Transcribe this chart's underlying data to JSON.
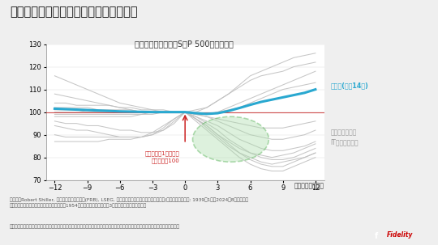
{
  "title_main": "米利下げ後の株価のリターンの特徴は？",
  "title_sub": "米利下げ開始前後のS＆P 500のリターン",
  "xlabel": "（経過した月数）",
  "bg_color": "#efefef",
  "plot_bg": "#ffffff",
  "x_ticks": [
    -12,
    -9,
    -6,
    -3,
    0,
    3,
    6,
    9,
    12
  ],
  "ylim": [
    70,
    130
  ],
  "yticks": [
    70,
    80,
    90,
    100,
    110,
    120,
    130
  ],
  "avg_color": "#29a8d0",
  "avg_label": "平均値(過去14回)",
  "annotation_text": "利下げ開始1ヵ月前の\n株価水準＝100",
  "legend_crisis": "世界金融危機後\nITバブル崩壊後",
  "source_text": "（出所）Robert Shiller, 米連邦準備制度理事会(FRB), LSEG, フィデリティ・インスティテュート。(注）データの期間: 1939年1月～2024年8月、月次。\n株価は価格リターン、月中平均値。ただし、1954年までは短期金利として3ヵ月物国債利回りを使用。",
  "disclaimer_text": "あらゆる記述やチャートは、例示目的もしくは過去の実績であり、将来の傾向、数値等を保証もしくは示唆するものではありません。",
  "gray_color": "#c0c0c0",
  "ref_line_color": "#cc3333",
  "annotation_color": "#cc2222",
  "gray_lines_y": [
    [
      116,
      114,
      112,
      110,
      108,
      106,
      104,
      103,
      102,
      101,
      101,
      100,
      100,
      101,
      102,
      105,
      108,
      112,
      116,
      118,
      120,
      122,
      124,
      125,
      126
    ],
    [
      108,
      107,
      106,
      105,
      104,
      103,
      102,
      101,
      100,
      100,
      100,
      100,
      100,
      100,
      102,
      105,
      108,
      111,
      114,
      116,
      117,
      118,
      120,
      121,
      122
    ],
    [
      104,
      104,
      103,
      103,
      103,
      103,
      102,
      102,
      101,
      101,
      100,
      100,
      100,
      99,
      99,
      100,
      102,
      104,
      106,
      108,
      110,
      112,
      114,
      116,
      118
    ],
    [
      102,
      102,
      102,
      102,
      101,
      101,
      101,
      101,
      100,
      100,
      100,
      100,
      100,
      99,
      99,
      100,
      101,
      102,
      104,
      106,
      108,
      110,
      111,
      112,
      113
    ],
    [
      101,
      101,
      101,
      100,
      100,
      100,
      100,
      100,
      100,
      100,
      100,
      100,
      100,
      99,
      98,
      97,
      96,
      95,
      94,
      93,
      93,
      93,
      94,
      95,
      96
    ],
    [
      100,
      100,
      100,
      100,
      100,
      100,
      100,
      100,
      100,
      100,
      100,
      100,
      100,
      99,
      98,
      96,
      94,
      92,
      90,
      89,
      88,
      88,
      89,
      90,
      92
    ],
    [
      99,
      99,
      99,
      99,
      99,
      99,
      99,
      99,
      99,
      100,
      100,
      100,
      100,
      98,
      96,
      94,
      91,
      88,
      86,
      84,
      83,
      83,
      84,
      85,
      87
    ],
    [
      98,
      98,
      98,
      98,
      98,
      98,
      98,
      98,
      99,
      99,
      100,
      100,
      100,
      98,
      95,
      92,
      88,
      85,
      82,
      80,
      79,
      79,
      80,
      82,
      84
    ],
    [
      96,
      95,
      95,
      94,
      94,
      93,
      92,
      92,
      91,
      91,
      92,
      95,
      100,
      97,
      94,
      90,
      86,
      82,
      79,
      77,
      76,
      76,
      78,
      80,
      82
    ],
    [
      94,
      93,
      92,
      92,
      91,
      90,
      89,
      89,
      89,
      90,
      92,
      96,
      100,
      96,
      92,
      88,
      84,
      80,
      77,
      75,
      74,
      74,
      76,
      78,
      80
    ],
    [
      90,
      89,
      89,
      89,
      89,
      89,
      89,
      89,
      89,
      90,
      93,
      97,
      100,
      97,
      93,
      89,
      85,
      82,
      80,
      78,
      77,
      78,
      79,
      80,
      82
    ],
    [
      87,
      87,
      87,
      87,
      87,
      88,
      88,
      88,
      89,
      91,
      94,
      97,
      100,
      97,
      94,
      90,
      87,
      84,
      82,
      81,
      80,
      81,
      82,
      84,
      86
    ]
  ],
  "avg_values": [
    101.5,
    101.3,
    101.1,
    100.9,
    100.7,
    100.5,
    100.3,
    100.2,
    100.1,
    100.0,
    100.0,
    100.0,
    100.0,
    99.5,
    99.2,
    99.5,
    100.5,
    101.8,
    103.2,
    104.5,
    105.5,
    106.5,
    107.5,
    108.5,
    110.0
  ]
}
